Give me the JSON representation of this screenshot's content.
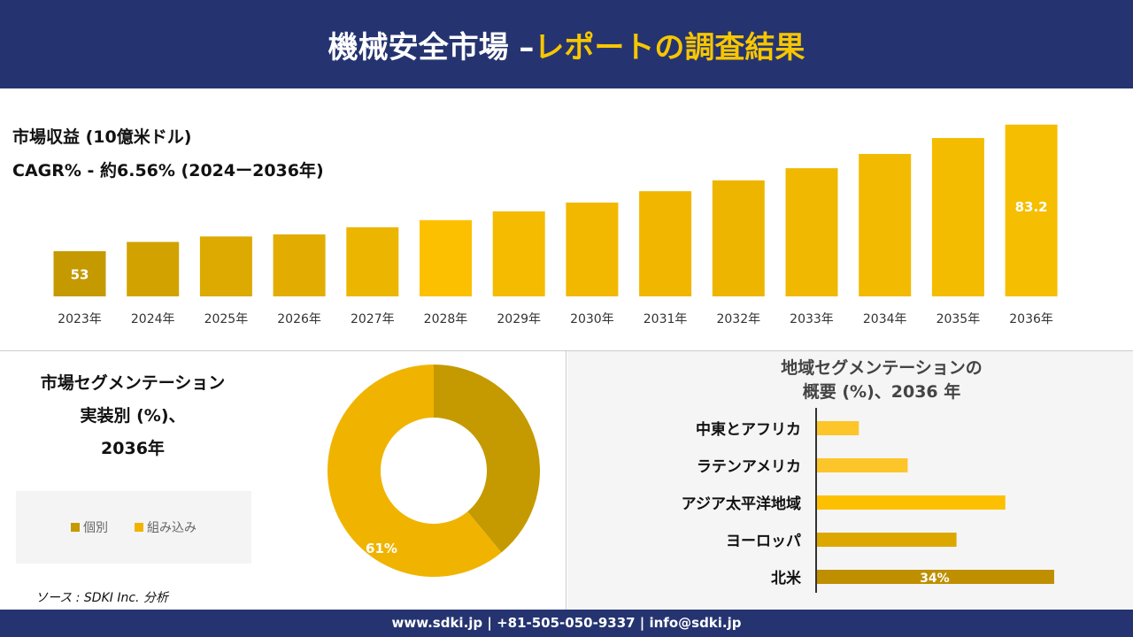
{
  "header": {
    "title_white": "機械安全市場 –",
    "title_yellow": "レポートの調査結果"
  },
  "revenue": {
    "label": "市場収益 (10億米ドル)",
    "cagr": "CAGR% - 約6.56% (2024ー2036年)"
  },
  "chart_data": [
    {
      "type": "bar",
      "categories": [
        "2023年",
        "2024年",
        "2025年",
        "2026年",
        "2027年",
        "2028年",
        "2029年",
        "2030年",
        "2031年",
        "2032年",
        "2033年",
        "2034年",
        "2035年",
        "2036年"
      ],
      "values": [
        53,
        55.2,
        56.5,
        57,
        58.7,
        60.4,
        62.5,
        64.6,
        67.3,
        69.9,
        72.8,
        76.2,
        80,
        83.2
      ],
      "data_labels": {
        "0": "53",
        "13": "83.2"
      },
      "colors": [
        "#c49a00",
        "#d2a300",
        "#dcaa00",
        "#e2ad00",
        "#ecb500",
        "#fcc000",
        "#f5bb00",
        "#f2b800",
        "#f0b600",
        "#eeb500",
        "#f0b800",
        "#f2ba00",
        "#f4bc00",
        "#f6be00"
      ]
    },
    {
      "type": "pie",
      "title": [
        "市場セグメンテーション",
        "実装別 (%)、",
        "2036年"
      ],
      "categories": [
        "個別",
        "組み込み"
      ],
      "values": [
        39,
        61
      ],
      "data_labels": {
        "1": "61%"
      },
      "colors": [
        "#c49a00",
        "#f0b400"
      ]
    },
    {
      "type": "bar",
      "orientation": "horizontal",
      "title": [
        "地域セグメンテーションの",
        "概要 (%)、2036 年"
      ],
      "categories": [
        "中東とアフリカ",
        "ラテンアメリカ",
        "アジア太平洋地域",
        "ヨーロッパ",
        "北米"
      ],
      "values": [
        6,
        13,
        27,
        20,
        34
      ],
      "data_labels": {
        "4": "34%"
      },
      "colors": [
        "#fcc52a",
        "#fcc52a",
        "#fdc000",
        "#dca800",
        "#bf8f00"
      ]
    }
  ],
  "source": "ソース : SDKI Inc. 分析",
  "footer": "www.sdki.jp | +81-505-050-9337 | info@sdki.jp"
}
